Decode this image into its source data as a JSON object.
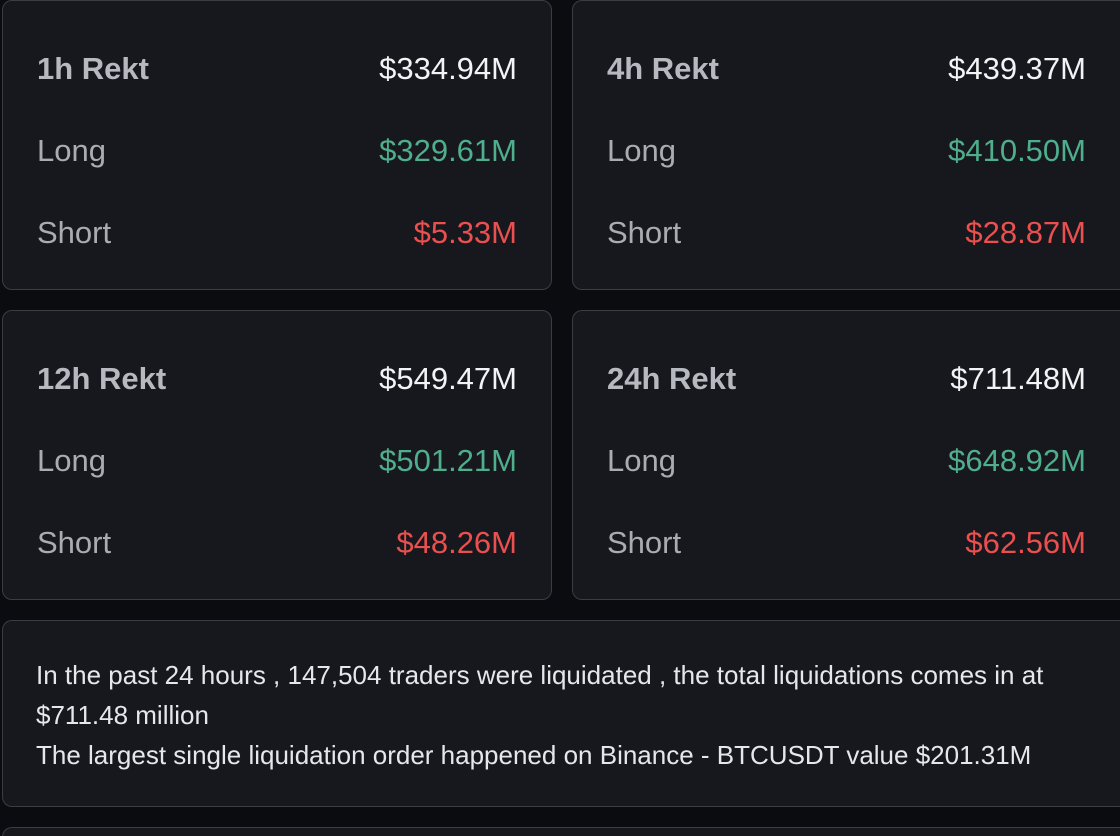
{
  "cards": [
    {
      "title": "1h Rekt",
      "total": "$334.94M",
      "long_label": "Long",
      "long_value": "$329.61M",
      "short_label": "Short",
      "short_value": "$5.33M"
    },
    {
      "title": "4h Rekt",
      "total": "$439.37M",
      "long_label": "Long",
      "long_value": "$410.50M",
      "short_label": "Short",
      "short_value": "$28.87M"
    },
    {
      "title": "12h Rekt",
      "total": "$549.47M",
      "long_label": "Long",
      "long_value": "$501.21M",
      "short_label": "Short",
      "short_value": "$48.26M"
    },
    {
      "title": "24h Rekt",
      "total": "$711.48M",
      "long_label": "Long",
      "long_value": "$648.92M",
      "short_label": "Short",
      "short_value": "$62.56M"
    }
  ],
  "summary": {
    "line1": "In the past 24 hours , 147,504 traders were liquidated , the total liquidations comes in at $711.48 million",
    "line2": "The largest single liquidation order happened on Binance - BTCUSDT value $201.31M"
  },
  "colors": {
    "background": "#0b0c0f",
    "card": "#17181d",
    "border": "#3a3d44",
    "long": "#4fae8b",
    "short": "#e9504f",
    "total": "#f2f3f5"
  }
}
